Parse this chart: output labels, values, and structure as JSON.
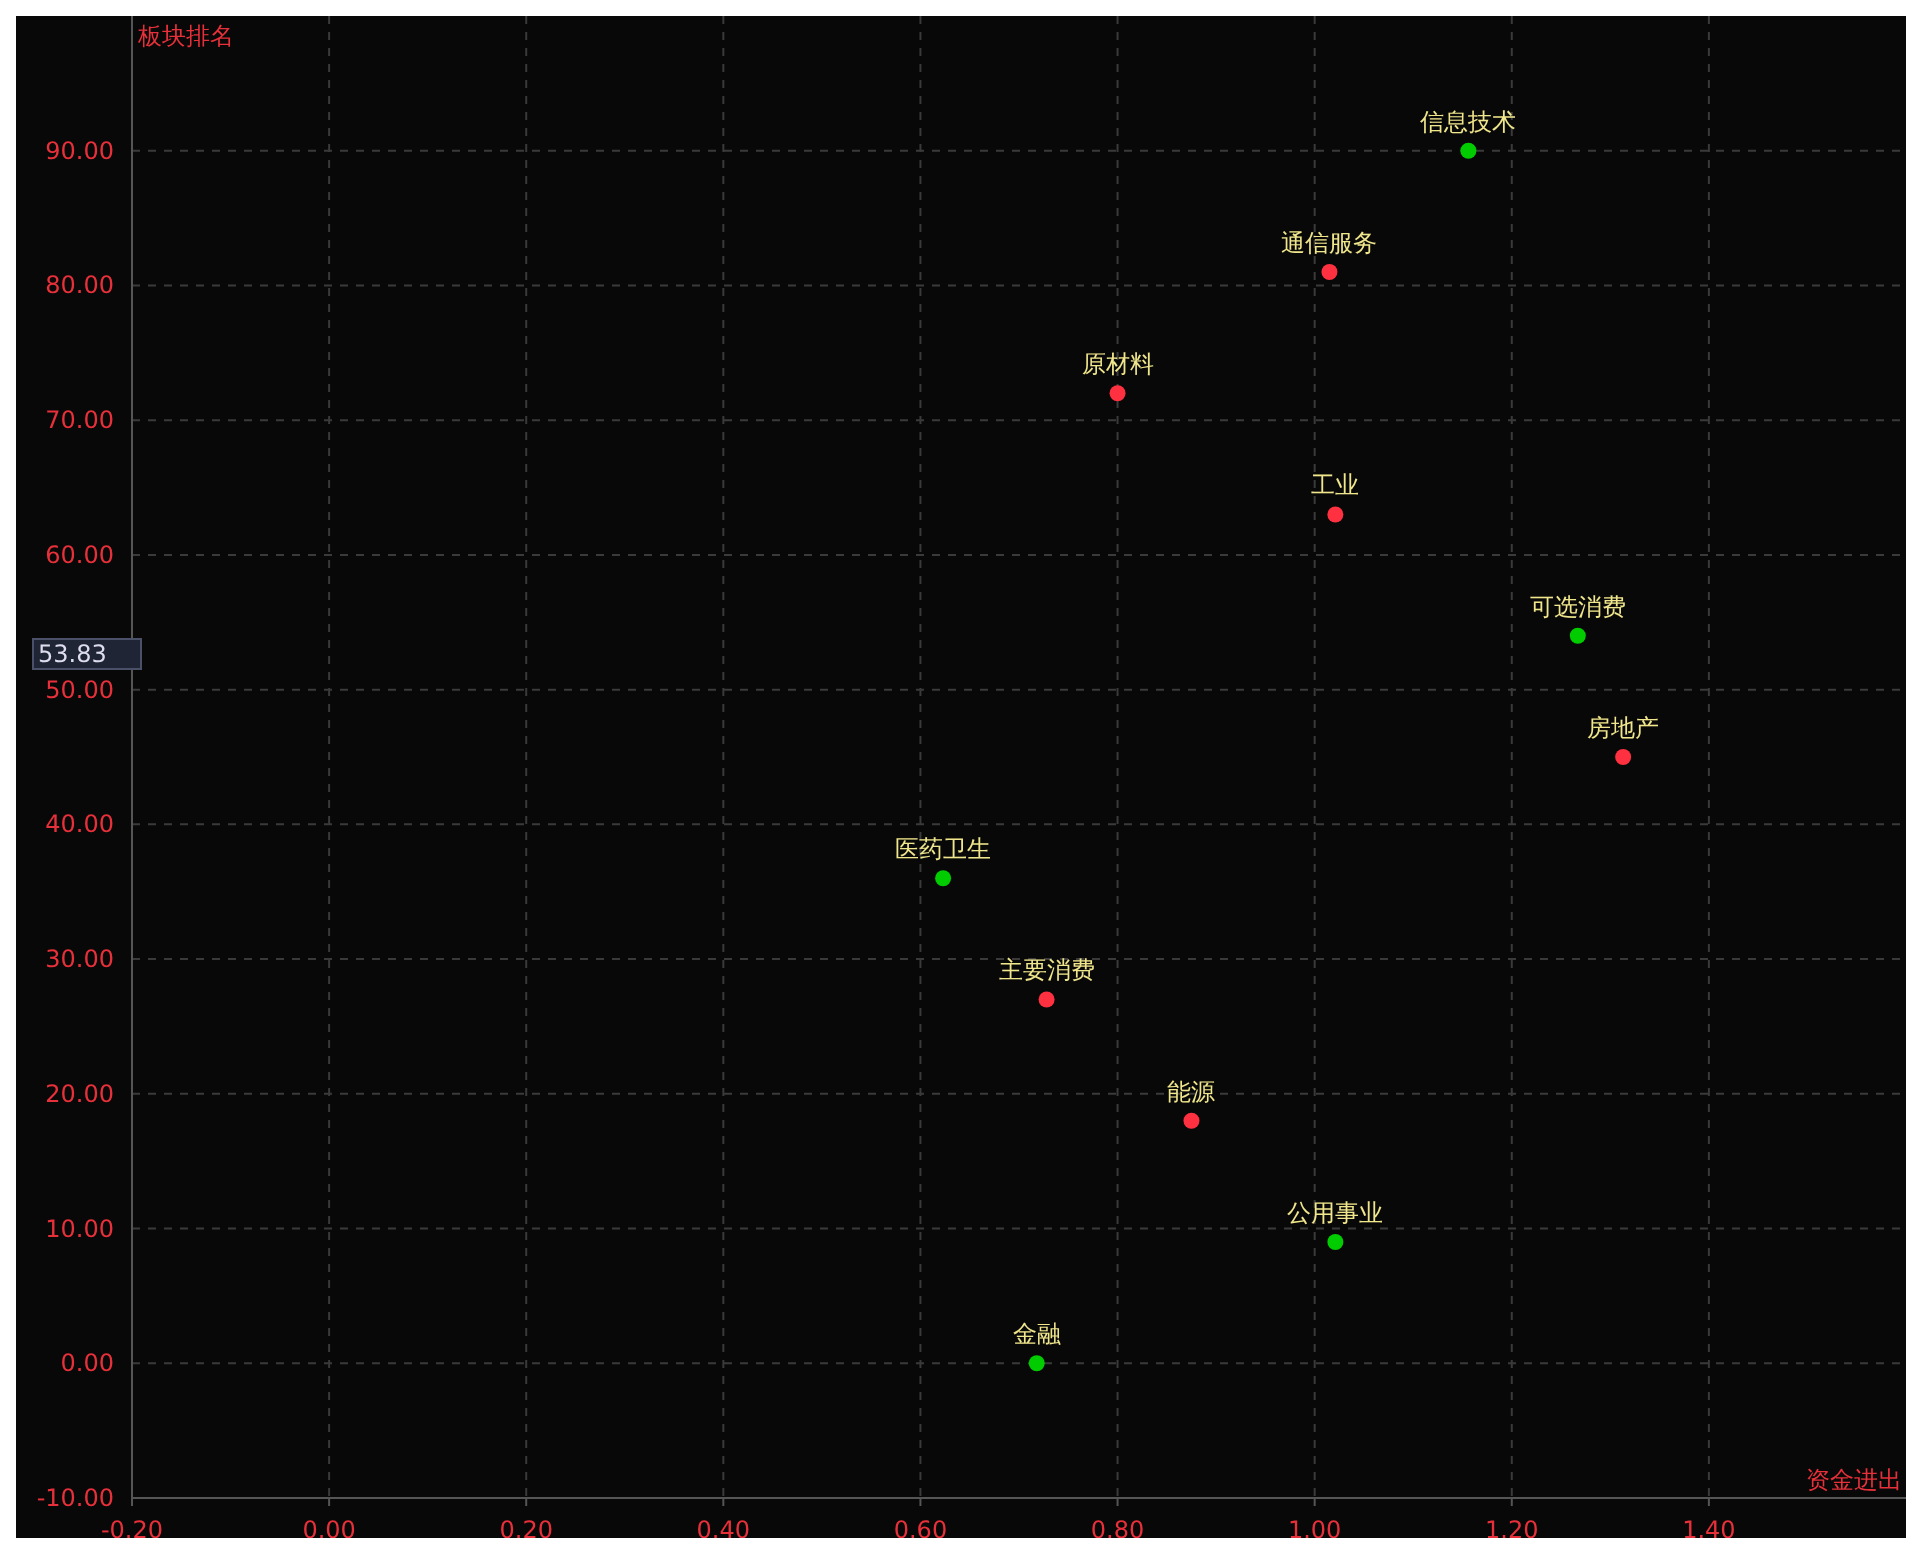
{
  "chart_data": {
    "type": "scatter",
    "xlabel": "资金进出",
    "ylabel": "板块排名",
    "xlim": [
      -0.2,
      1.6
    ],
    "ylim": [
      -10,
      100
    ],
    "xticks": [
      {
        "value": -0.2,
        "label": "-0.20"
      },
      {
        "value": 0,
        "label": "0.00"
      },
      {
        "value": 0.2,
        "label": "0.20"
      },
      {
        "value": 0.4,
        "label": "0.40"
      },
      {
        "value": 0.6,
        "label": "0.60"
      },
      {
        "value": 0.8,
        "label": "0.80"
      },
      {
        "value": 1,
        "label": "1.00"
      },
      {
        "value": 1.2,
        "label": "1.20"
      },
      {
        "value": 1.4,
        "label": "1.40"
      }
    ],
    "yticks": [
      {
        "value": -10,
        "label": "-10.00"
      },
      {
        "value": 0,
        "label": "0.00"
      },
      {
        "value": 10,
        "label": "10.00"
      },
      {
        "value": 20,
        "label": "20.00"
      },
      {
        "value": 30,
        "label": "30.00"
      },
      {
        "value": 40,
        "label": "40.00"
      },
      {
        "value": 50,
        "label": "50.00"
      },
      {
        "value": 60,
        "label": "60.00"
      },
      {
        "value": 70,
        "label": "70.00"
      },
      {
        "value": 80,
        "label": "80.00"
      },
      {
        "value": 90,
        "label": "90.00"
      }
    ],
    "grid": true,
    "marker": "circle",
    "annotations": [
      "53.83"
    ],
    "series": [
      {
        "name": "信息技术",
        "color": "#00cc00",
        "x": [
          1.156
        ],
        "values": [
          90
        ]
      },
      {
        "name": "通信服务",
        "color": "#ff3040",
        "x": [
          1.015
        ],
        "values": [
          81
        ]
      },
      {
        "name": "原材料",
        "color": "#ff3040",
        "x": [
          0.8
        ],
        "values": [
          72
        ]
      },
      {
        "name": "工业",
        "color": "#ff3040",
        "x": [
          1.021
        ],
        "values": [
          63
        ]
      },
      {
        "name": "可选消费",
        "color": "#00cc00",
        "x": [
          1.267
        ],
        "values": [
          54
        ]
      },
      {
        "name": "房地产",
        "color": "#ff3040",
        "x": [
          1.313
        ],
        "values": [
          45
        ]
      },
      {
        "name": "医药卫生",
        "color": "#00cc00",
        "x": [
          0.623
        ],
        "values": [
          36
        ]
      },
      {
        "name": "主要消费",
        "color": "#ff3040",
        "x": [
          0.728
        ],
        "values": [
          27
        ]
      },
      {
        "name": "能源",
        "color": "#ff3040",
        "x": [
          0.875
        ],
        "values": [
          18
        ]
      },
      {
        "name": "公用事业",
        "color": "#00cc00",
        "x": [
          1.021
        ],
        "values": [
          9
        ]
      },
      {
        "name": "金融",
        "color": "#00cc00",
        "x": [
          0.718
        ],
        "values": [
          0
        ]
      }
    ]
  }
}
